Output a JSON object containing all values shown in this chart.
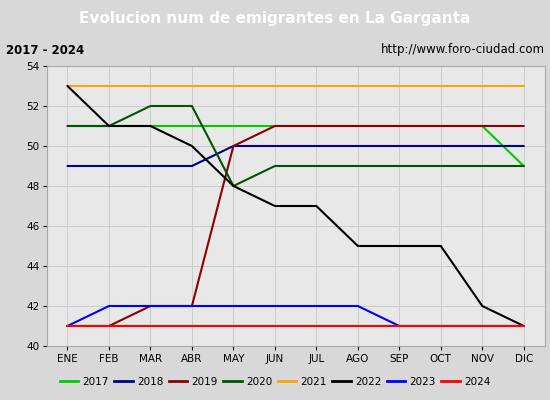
{
  "title": "Evolucion num de emigrantes en La Garganta",
  "subtitle_left": "2017 - 2024",
  "subtitle_right": "http://www.foro-ciudad.com",
  "months": [
    "ENE",
    "FEB",
    "MAR",
    "ABR",
    "MAY",
    "JUN",
    "JUL",
    "AGO",
    "SEP",
    "OCT",
    "NOV",
    "DIC"
  ],
  "ylim": [
    40,
    54
  ],
  "yticks": [
    40,
    42,
    44,
    46,
    48,
    50,
    52,
    54
  ],
  "series": {
    "2017": {
      "color": "#00cc00",
      "data": [
        51,
        51,
        51,
        51,
        51,
        51,
        51,
        51,
        51,
        51,
        51,
        49
      ]
    },
    "2018": {
      "color": "#00008b",
      "data": [
        49,
        49,
        49,
        49,
        50,
        50,
        50,
        50,
        50,
        50,
        50,
        50
      ]
    },
    "2019": {
      "color": "#8b0000",
      "data": [
        41,
        41,
        42,
        42,
        50,
        51,
        51,
        51,
        51,
        51,
        51,
        51
      ]
    },
    "2020": {
      "color": "#005500",
      "data": [
        51,
        51,
        52,
        52,
        48,
        49,
        49,
        49,
        49,
        49,
        49,
        49
      ]
    },
    "2021": {
      "color": "#ffa500",
      "data": [
        53,
        53,
        53,
        53,
        53,
        53,
        53,
        53,
        53,
        53,
        53,
        53
      ]
    },
    "2022": {
      "color": "#000000",
      "data": [
        53,
        51,
        51,
        50,
        48,
        47,
        47,
        45,
        45,
        45,
        42,
        41
      ]
    },
    "2023": {
      "color": "#0000ff",
      "data": [
        41,
        42,
        42,
        42,
        42,
        42,
        42,
        42,
        41,
        41,
        41,
        41
      ]
    },
    "2024": {
      "color": "#ff0000",
      "data": [
        41,
        41,
        41,
        41,
        41,
        41,
        41,
        41,
        41,
        41,
        41,
        41
      ]
    }
  },
  "years": [
    "2017",
    "2018",
    "2019",
    "2020",
    "2021",
    "2022",
    "2023",
    "2024"
  ],
  "background_color": "#d8d8d8",
  "title_bg_color": "#4472c4",
  "title_text_color": "#ffffff",
  "subtitle_bg_color": "#ffffff",
  "subtitle_text_color": "#000000",
  "legend_bg_color": "#ffffff",
  "grid_color": "#cccccc",
  "plot_bg_color": "#e8e8e8"
}
